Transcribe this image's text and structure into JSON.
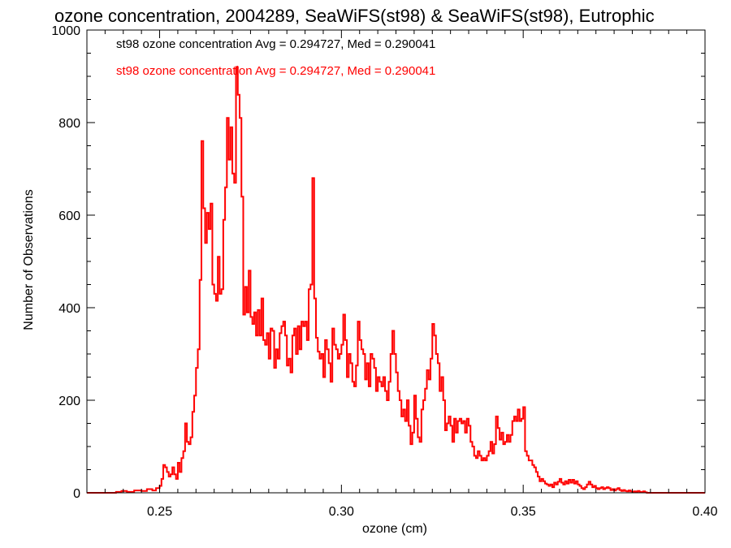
{
  "chart_data": {
    "type": "histogram",
    "title": "ozone concentration, 2004289, SeaWiFS(st98) & SeaWiFS(st98), Eutrophic",
    "xlabel": "ozone (cm)",
    "ylabel": "Number of Observations",
    "xlim": [
      0.23,
      0.4
    ],
    "ylim": [
      0,
      1000
    ],
    "x_ticks": [
      0.25,
      0.3,
      0.35,
      0.4
    ],
    "x_tick_labels": [
      "0.25",
      "0.30",
      "0.35",
      "0.40"
    ],
    "y_ticks": [
      0,
      200,
      400,
      600,
      800,
      1000
    ],
    "y_tick_labels": [
      "0",
      "200",
      "400",
      "600",
      "800",
      "1000"
    ],
    "grid": false,
    "bin_width": 0.0005,
    "annotations": [
      {
        "text": "st98 ozone concentration Avg = 0.294727, Med = 0.290041",
        "color": "#000000"
      },
      {
        "text": "st98 ozone concentration Avg = 0.294727, Med = 0.290041",
        "color": "#ff0000"
      }
    ],
    "series": [
      {
        "color": "#ff0000",
        "points": [
          [
            0.23,
            0
          ],
          [
            0.2375,
            0
          ],
          [
            0.238,
            2
          ],
          [
            0.2395,
            4
          ],
          [
            0.241,
            2
          ],
          [
            0.243,
            5
          ],
          [
            0.245,
            4
          ],
          [
            0.2465,
            8
          ],
          [
            0.248,
            5
          ],
          [
            0.249,
            10
          ],
          [
            0.25,
            15
          ],
          [
            0.2505,
            30
          ],
          [
            0.251,
            60
          ],
          [
            0.2515,
            55
          ],
          [
            0.252,
            45
          ],
          [
            0.2525,
            35
          ],
          [
            0.253,
            40
          ],
          [
            0.2535,
            55
          ],
          [
            0.254,
            40
          ],
          [
            0.2545,
            30
          ],
          [
            0.255,
            65
          ],
          [
            0.2555,
            45
          ],
          [
            0.256,
            75
          ],
          [
            0.2565,
            90
          ],
          [
            0.257,
            150
          ],
          [
            0.2575,
            110
          ],
          [
            0.258,
            105
          ],
          [
            0.2585,
            120
          ],
          [
            0.259,
            175
          ],
          [
            0.2595,
            210
          ],
          [
            0.26,
            270
          ],
          [
            0.2605,
            310
          ],
          [
            0.261,
            460
          ],
          [
            0.2615,
            760
          ],
          [
            0.262,
            615
          ],
          [
            0.2625,
            540
          ],
          [
            0.263,
            605
          ],
          [
            0.2635,
            570
          ],
          [
            0.264,
            625
          ],
          [
            0.2645,
            450
          ],
          [
            0.265,
            430
          ],
          [
            0.2655,
            415
          ],
          [
            0.266,
            510
          ],
          [
            0.2665,
            430
          ],
          [
            0.267,
            440
          ],
          [
            0.2675,
            590
          ],
          [
            0.268,
            660
          ],
          [
            0.2685,
            810
          ],
          [
            0.269,
            720
          ],
          [
            0.2695,
            790
          ],
          [
            0.27,
            690
          ],
          [
            0.2705,
            670
          ],
          [
            0.271,
            920
          ],
          [
            0.2715,
            860
          ],
          [
            0.272,
            810
          ],
          [
            0.2725,
            640
          ],
          [
            0.273,
            385
          ],
          [
            0.2735,
            445
          ],
          [
            0.274,
            390
          ],
          [
            0.2745,
            480
          ],
          [
            0.275,
            380
          ],
          [
            0.2755,
            365
          ],
          [
            0.276,
            390
          ],
          [
            0.2765,
            340
          ],
          [
            0.277,
            395
          ],
          [
            0.2775,
            340
          ],
          [
            0.278,
            420
          ],
          [
            0.2785,
            330
          ],
          [
            0.279,
            320
          ],
          [
            0.2795,
            345
          ],
          [
            0.28,
            290
          ],
          [
            0.2805,
            355
          ],
          [
            0.281,
            350
          ],
          [
            0.2815,
            270
          ],
          [
            0.282,
            310
          ],
          [
            0.2825,
            290
          ],
          [
            0.283,
            345
          ],
          [
            0.2835,
            360
          ],
          [
            0.284,
            370
          ],
          [
            0.2845,
            340
          ],
          [
            0.285,
            275
          ],
          [
            0.2855,
            290
          ],
          [
            0.286,
            260
          ],
          [
            0.2865,
            340
          ],
          [
            0.287,
            355
          ],
          [
            0.2875,
            300
          ],
          [
            0.288,
            360
          ],
          [
            0.2885,
            310
          ],
          [
            0.289,
            370
          ],
          [
            0.2895,
            360
          ],
          [
            0.29,
            370
          ],
          [
            0.2905,
            330
          ],
          [
            0.291,
            440
          ],
          [
            0.2915,
            450
          ],
          [
            0.292,
            680
          ],
          [
            0.2925,
            420
          ],
          [
            0.293,
            335
          ],
          [
            0.2935,
            305
          ],
          [
            0.294,
            290
          ],
          [
            0.2945,
            300
          ],
          [
            0.295,
            250
          ],
          [
            0.2955,
            330
          ],
          [
            0.296,
            310
          ],
          [
            0.2965,
            280
          ],
          [
            0.297,
            240
          ],
          [
            0.2975,
            355
          ],
          [
            0.298,
            320
          ],
          [
            0.2985,
            310
          ],
          [
            0.299,
            290
          ],
          [
            0.2995,
            300
          ],
          [
            0.3,
            320
          ],
          [
            0.3005,
            385
          ],
          [
            0.301,
            330
          ],
          [
            0.3015,
            250
          ],
          [
            0.302,
            300
          ],
          [
            0.3025,
            280
          ],
          [
            0.303,
            240
          ],
          [
            0.3035,
            230
          ],
          [
            0.304,
            275
          ],
          [
            0.3045,
            370
          ],
          [
            0.305,
            330
          ],
          [
            0.3055,
            310
          ],
          [
            0.306,
            300
          ],
          [
            0.3065,
            245
          ],
          [
            0.307,
            280
          ],
          [
            0.3075,
            230
          ],
          [
            0.308,
            300
          ],
          [
            0.3085,
            290
          ],
          [
            0.309,
            270
          ],
          [
            0.3095,
            220
          ],
          [
            0.31,
            250
          ],
          [
            0.3105,
            240
          ],
          [
            0.311,
            230
          ],
          [
            0.3115,
            250
          ],
          [
            0.312,
            220
          ],
          [
            0.3125,
            200
          ],
          [
            0.313,
            240
          ],
          [
            0.3135,
            300
          ],
          [
            0.314,
            350
          ],
          [
            0.3145,
            300
          ],
          [
            0.315,
            260
          ],
          [
            0.3155,
            220
          ],
          [
            0.316,
            200
          ],
          [
            0.3165,
            165
          ],
          [
            0.317,
            180
          ],
          [
            0.3175,
            155
          ],
          [
            0.318,
            200
          ],
          [
            0.3185,
            145
          ],
          [
            0.319,
            105
          ],
          [
            0.3195,
            130
          ],
          [
            0.32,
            210
          ],
          [
            0.3205,
            160
          ],
          [
            0.321,
            120
          ],
          [
            0.3215,
            110
          ],
          [
            0.322,
            180
          ],
          [
            0.3225,
            200
          ],
          [
            0.323,
            225
          ],
          [
            0.3235,
            265
          ],
          [
            0.324,
            245
          ],
          [
            0.3245,
            290
          ],
          [
            0.325,
            365
          ],
          [
            0.3255,
            340
          ],
          [
            0.326,
            300
          ],
          [
            0.3265,
            280
          ],
          [
            0.327,
            220
          ],
          [
            0.3275,
            250
          ],
          [
            0.328,
            200
          ],
          [
            0.3285,
            135
          ],
          [
            0.329,
            150
          ],
          [
            0.3295,
            165
          ],
          [
            0.33,
            145
          ],
          [
            0.3305,
            110
          ],
          [
            0.331,
            160
          ],
          [
            0.3315,
            130
          ],
          [
            0.332,
            155
          ],
          [
            0.3325,
            160
          ],
          [
            0.333,
            150
          ],
          [
            0.3335,
            155
          ],
          [
            0.334,
            130
          ],
          [
            0.3345,
            160
          ],
          [
            0.335,
            145
          ],
          [
            0.3355,
            110
          ],
          [
            0.336,
            100
          ],
          [
            0.3365,
            80
          ],
          [
            0.337,
            75
          ],
          [
            0.3375,
            90
          ],
          [
            0.338,
            80
          ],
          [
            0.3385,
            70
          ],
          [
            0.339,
            75
          ],
          [
            0.3395,
            70
          ],
          [
            0.34,
            80
          ],
          [
            0.3405,
            90
          ],
          [
            0.341,
            110
          ],
          [
            0.3415,
            85
          ],
          [
            0.342,
            105
          ],
          [
            0.3425,
            165
          ],
          [
            0.343,
            140
          ],
          [
            0.3435,
            115
          ],
          [
            0.344,
            130
          ],
          [
            0.3445,
            105
          ],
          [
            0.345,
            110
          ],
          [
            0.3455,
            125
          ],
          [
            0.346,
            110
          ],
          [
            0.3465,
            125
          ],
          [
            0.347,
            155
          ],
          [
            0.3475,
            165
          ],
          [
            0.348,
            155
          ],
          [
            0.3485,
            180
          ],
          [
            0.349,
            155
          ],
          [
            0.3495,
            160
          ],
          [
            0.35,
            185
          ],
          [
            0.3505,
            90
          ],
          [
            0.351,
            80
          ],
          [
            0.3515,
            70
          ],
          [
            0.352,
            70
          ],
          [
            0.3525,
            60
          ],
          [
            0.353,
            55
          ],
          [
            0.3535,
            45
          ],
          [
            0.354,
            35
          ],
          [
            0.3545,
            25
          ],
          [
            0.355,
            30
          ],
          [
            0.3555,
            25
          ],
          [
            0.356,
            20
          ],
          [
            0.3565,
            18
          ],
          [
            0.357,
            15
          ],
          [
            0.3575,
            18
          ],
          [
            0.358,
            12
          ],
          [
            0.3585,
            22
          ],
          [
            0.359,
            18
          ],
          [
            0.3595,
            24
          ],
          [
            0.36,
            30
          ],
          [
            0.3605,
            22
          ],
          [
            0.361,
            18
          ],
          [
            0.3615,
            25
          ],
          [
            0.362,
            20
          ],
          [
            0.3625,
            28
          ],
          [
            0.363,
            22
          ],
          [
            0.3635,
            28
          ],
          [
            0.364,
            20
          ],
          [
            0.3645,
            25
          ],
          [
            0.365,
            18
          ],
          [
            0.3655,
            15
          ],
          [
            0.366,
            10
          ],
          [
            0.3665,
            8
          ],
          [
            0.367,
            12
          ],
          [
            0.3675,
            18
          ],
          [
            0.368,
            24
          ],
          [
            0.3685,
            18
          ],
          [
            0.369,
            12
          ],
          [
            0.3695,
            15
          ],
          [
            0.37,
            10
          ],
          [
            0.3705,
            8
          ],
          [
            0.371,
            10
          ],
          [
            0.3715,
            12
          ],
          [
            0.372,
            8
          ],
          [
            0.3725,
            10
          ],
          [
            0.373,
            12
          ],
          [
            0.3735,
            10
          ],
          [
            0.374,
            6
          ],
          [
            0.3745,
            8
          ],
          [
            0.375,
            5
          ],
          [
            0.3755,
            8
          ],
          [
            0.376,
            10
          ],
          [
            0.3765,
            6
          ],
          [
            0.377,
            4
          ],
          [
            0.3775,
            6
          ],
          [
            0.378,
            4
          ],
          [
            0.3785,
            3
          ],
          [
            0.379,
            5
          ],
          [
            0.3795,
            3
          ],
          [
            0.38,
            2
          ],
          [
            0.3805,
            3
          ],
          [
            0.381,
            2
          ],
          [
            0.3815,
            4
          ],
          [
            0.382,
            2
          ],
          [
            0.3825,
            1
          ],
          [
            0.383,
            3
          ],
          [
            0.3835,
            1
          ],
          [
            0.384,
            0
          ],
          [
            0.4,
            0
          ]
        ]
      }
    ]
  }
}
